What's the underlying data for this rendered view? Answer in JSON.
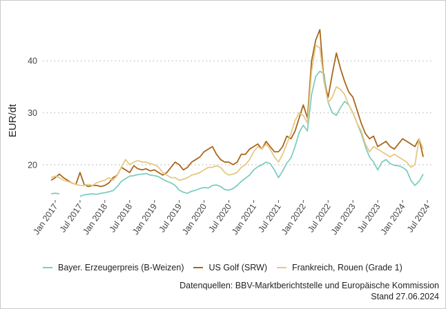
{
  "chart_data": {
    "type": "line",
    "ylabel": "EUR/dt",
    "xlabel": "",
    "ylim": [
      13.2,
      48
    ],
    "yticks": [
      20,
      30,
      40
    ],
    "xlim": [
      "2016-10",
      "2024-08"
    ],
    "x_ticks": [
      {
        "label": "Jan 2017",
        "date": "2017-01"
      },
      {
        "label": "Jul 2017",
        "date": "2017-07"
      },
      {
        "label": "Jan 2018",
        "date": "2018-01"
      },
      {
        "label": "Jul 2018",
        "date": "2018-07"
      },
      {
        "label": "Jan 2019",
        "date": "2019-01"
      },
      {
        "label": "Jul 2019",
        "date": "2019-07"
      },
      {
        "label": "Jan 2020",
        "date": "2020-01"
      },
      {
        "label": "Jul 2020",
        "date": "2020-07"
      },
      {
        "label": "Jan 2021",
        "date": "2021-01"
      },
      {
        "label": "Jul 2021",
        "date": "2021-07"
      },
      {
        "label": "Jan 2022",
        "date": "2022-01"
      },
      {
        "label": "Jul 2022",
        "date": "2022-07"
      },
      {
        "label": "Jan 2023",
        "date": "2023-01"
      },
      {
        "label": "Jul 2023",
        "date": "2023-07"
      },
      {
        "label": "Jan 2024",
        "date": "2024-01"
      },
      {
        "label": "Jul 2024",
        "date": "2024-07"
      }
    ],
    "grid": "horizontal dotted",
    "legend_position": "bottom",
    "series": [
      {
        "name": "Bayer. Erzeugerpreis (B-Weizen)",
        "color": "#7dcdc0",
        "x": [
          "2016-12",
          "2017-01",
          "2017-02",
          "2017-03",
          "2017-04",
          "2017-05",
          "2017-06",
          "2017-07",
          "2017-08",
          "2017-09",
          "2017-10",
          "2017-11",
          "2017-12",
          "2018-01",
          "2018-02",
          "2018-03",
          "2018-04",
          "2018-05",
          "2018-06",
          "2018-07",
          "2018-08",
          "2018-09",
          "2018-10",
          "2018-11",
          "2018-12",
          "2019-01",
          "2019-02",
          "2019-03",
          "2019-04",
          "2019-05",
          "2019-06",
          "2019-07",
          "2019-08",
          "2019-09",
          "2019-10",
          "2019-11",
          "2019-12",
          "2020-01",
          "2020-02",
          "2020-03",
          "2020-04",
          "2020-05",
          "2020-06",
          "2020-07",
          "2020-08",
          "2020-09",
          "2020-10",
          "2020-11",
          "2020-12",
          "2021-01",
          "2021-02",
          "2021-03",
          "2021-04",
          "2021-05",
          "2021-06",
          "2021-07",
          "2021-08",
          "2021-09",
          "2021-10",
          "2021-11",
          "2021-12",
          "2022-01",
          "2022-02",
          "2022-03",
          "2022-04",
          "2022-05",
          "2022-06",
          "2022-07",
          "2022-08",
          "2022-09",
          "2022-10",
          "2022-11",
          "2022-12",
          "2023-01",
          "2023-02",
          "2023-03",
          "2023-04",
          "2023-05",
          "2023-06",
          "2023-07",
          "2023-08",
          "2023-09",
          "2023-10",
          "2023-11",
          "2023-12",
          "2024-01",
          "2024-02",
          "2024-03",
          "2024-04",
          "2024-05",
          "2024-06"
        ],
        "y": [
          14.4,
          14.5,
          14.4,
          null,
          null,
          null,
          null,
          13.9,
          14.2,
          14.3,
          14.4,
          14.3,
          14.5,
          14.6,
          14.8,
          15.0,
          15.8,
          16.8,
          17.3,
          17.8,
          17.9,
          18.1,
          18.2,
          18.3,
          18.0,
          17.9,
          17.7,
          17.2,
          16.8,
          16.5,
          16.0,
          15.1,
          14.7,
          14.5,
          14.9,
          15.1,
          15.4,
          15.6,
          15.5,
          16.0,
          16.1,
          15.8,
          15.2,
          15.1,
          15.4,
          16.0,
          16.8,
          17.4,
          18.0,
          19.0,
          19.6,
          20.0,
          20.5,
          20.2,
          19.0,
          17.5,
          18.8,
          20.3,
          21.3,
          23.5,
          26.2,
          27.6,
          26.5,
          33.5,
          37.0,
          38.0,
          37.5,
          32.0,
          30.0,
          29.5,
          31.0,
          32.2,
          31.5,
          30.0,
          28.0,
          26.0,
          23.5,
          21.5,
          20.5,
          19.0,
          20.5,
          21.0,
          20.2,
          19.9,
          19.8,
          19.5,
          18.9,
          17.0,
          16.0,
          16.8,
          18.2
        ]
      },
      {
        "name": "US Golf (SRW)",
        "color": "#a8661a",
        "x": [
          "2016-12",
          "2017-01",
          "2017-02",
          "2017-03",
          "2017-04",
          "2017-05",
          "2017-06",
          "2017-07",
          "2017-08",
          "2017-09",
          "2017-10",
          "2017-11",
          "2017-12",
          "2018-01",
          "2018-02",
          "2018-03",
          "2018-04",
          "2018-05",
          "2018-06",
          "2018-07",
          "2018-08",
          "2018-09",
          "2018-10",
          "2018-11",
          "2018-12",
          "2019-01",
          "2019-02",
          "2019-03",
          "2019-04",
          "2019-05",
          "2019-06",
          "2019-07",
          "2019-08",
          "2019-09",
          "2019-10",
          "2019-11",
          "2019-12",
          "2020-01",
          "2020-02",
          "2020-03",
          "2020-04",
          "2020-05",
          "2020-06",
          "2020-07",
          "2020-08",
          "2020-09",
          "2020-10",
          "2020-11",
          "2020-12",
          "2021-01",
          "2021-02",
          "2021-03",
          "2021-04",
          "2021-05",
          "2021-06",
          "2021-07",
          "2021-08",
          "2021-09",
          "2021-10",
          "2021-11",
          "2021-12",
          "2022-01",
          "2022-02",
          "2022-03",
          "2022-04",
          "2022-05",
          "2022-06",
          "2022-07",
          "2022-08",
          "2022-09",
          "2022-10",
          "2022-11",
          "2022-12",
          "2023-01",
          "2023-02",
          "2023-03",
          "2023-04",
          "2023-05",
          "2023-06",
          "2023-07",
          "2023-08",
          "2023-09",
          "2023-10",
          "2023-11",
          "2023-12",
          "2024-01",
          "2024-02",
          "2024-03",
          "2024-04",
          "2024-05",
          "2024-06"
        ],
        "y": [
          17.0,
          17.5,
          18.2,
          17.5,
          17.0,
          16.5,
          16.2,
          18.5,
          16.2,
          15.8,
          16.0,
          16.0,
          15.8,
          16.0,
          16.5,
          17.5,
          18.0,
          19.5,
          19.0,
          18.5,
          19.8,
          19.2,
          19.0,
          19.2,
          18.8,
          19.0,
          18.5,
          18.0,
          18.5,
          19.5,
          20.5,
          20.0,
          19.0,
          19.5,
          20.5,
          21.0,
          21.5,
          22.5,
          23.0,
          23.5,
          22.0,
          21.0,
          20.5,
          20.5,
          20.0,
          20.5,
          22.0,
          22.0,
          23.0,
          23.5,
          24.0,
          23.0,
          24.5,
          23.5,
          22.5,
          22.5,
          23.5,
          25.5,
          25.0,
          26.5,
          29.0,
          31.5,
          29.0,
          40.0,
          44.0,
          46.0,
          36.0,
          33.0,
          37.5,
          41.5,
          38.5,
          36.0,
          34.0,
          33.0,
          30.5,
          28.0,
          26.0,
          25.0,
          25.5,
          23.5,
          24.0,
          24.5,
          23.5,
          23.0,
          24.0,
          25.0,
          24.5,
          24.0,
          23.5,
          25.0,
          21.5
        ]
      },
      {
        "name": "Frankreich, Rouen (Grade 1)",
        "color": "#e5c883",
        "x": [
          "2016-12",
          "2017-01",
          "2017-02",
          "2017-03",
          "2017-04",
          "2017-05",
          "2017-06",
          "2017-07",
          "2017-08",
          "2017-09",
          "2017-10",
          "2017-11",
          "2017-12",
          "2018-01",
          "2018-02",
          "2018-03",
          "2018-04",
          "2018-05",
          "2018-06",
          "2018-07",
          "2018-08",
          "2018-09",
          "2018-10",
          "2018-11",
          "2018-12",
          "2019-01",
          "2019-02",
          "2019-03",
          "2019-04",
          "2019-05",
          "2019-06",
          "2019-07",
          "2019-08",
          "2019-09",
          "2019-10",
          "2019-11",
          "2019-12",
          "2020-01",
          "2020-02",
          "2020-03",
          "2020-04",
          "2020-05",
          "2020-06",
          "2020-07",
          "2020-08",
          "2020-09",
          "2020-10",
          "2020-11",
          "2020-12",
          "2021-01",
          "2021-02",
          "2021-03",
          "2021-04",
          "2021-05",
          "2021-06",
          "2021-07",
          "2021-08",
          "2021-09",
          "2021-10",
          "2021-11",
          "2021-12",
          "2022-01",
          "2022-02",
          "2022-03",
          "2022-04",
          "2022-05",
          "2022-06",
          "2022-07",
          "2022-08",
          "2022-09",
          "2022-10",
          "2022-11",
          "2022-12",
          "2023-01",
          "2023-02",
          "2023-03",
          "2023-04",
          "2023-05",
          "2023-06",
          "2023-07",
          "2023-08",
          "2023-09",
          "2023-10",
          "2023-11",
          "2023-12",
          "2024-01",
          "2024-02",
          "2024-03",
          "2024-04",
          "2024-05",
          "2024-06"
        ],
        "y": [
          17.5,
          17.8,
          17.5,
          17.0,
          16.8,
          16.5,
          16.2,
          16.0,
          16.0,
          16.2,
          16.0,
          16.5,
          16.8,
          17.0,
          17.5,
          17.0,
          18.0,
          19.5,
          21.0,
          20.0,
          20.5,
          20.8,
          20.5,
          20.5,
          20.2,
          20.0,
          19.5,
          18.5,
          18.0,
          17.5,
          17.5,
          17.0,
          17.2,
          17.5,
          18.0,
          18.2,
          18.5,
          19.0,
          19.5,
          19.5,
          19.8,
          19.5,
          18.5,
          18.0,
          18.2,
          18.5,
          19.5,
          20.0,
          21.0,
          22.5,
          23.5,
          23.0,
          24.0,
          23.0,
          21.5,
          20.5,
          22.0,
          24.0,
          26.0,
          28.5,
          30.0,
          29.5,
          28.0,
          38.0,
          43.0,
          42.5,
          36.0,
          32.0,
          33.0,
          35.0,
          34.5,
          33.5,
          31.5,
          30.0,
          28.0,
          26.5,
          24.0,
          22.5,
          23.5,
          23.0,
          22.5,
          22.0,
          21.5,
          22.0,
          21.5,
          21.0,
          20.5,
          19.5,
          20.0,
          25.0,
          23.0
        ]
      }
    ]
  },
  "source_line1": "Datenquellen: BBV-Marktberichtstelle und Europäische Kommission",
  "source_line2": "Stand 27.06.2024"
}
